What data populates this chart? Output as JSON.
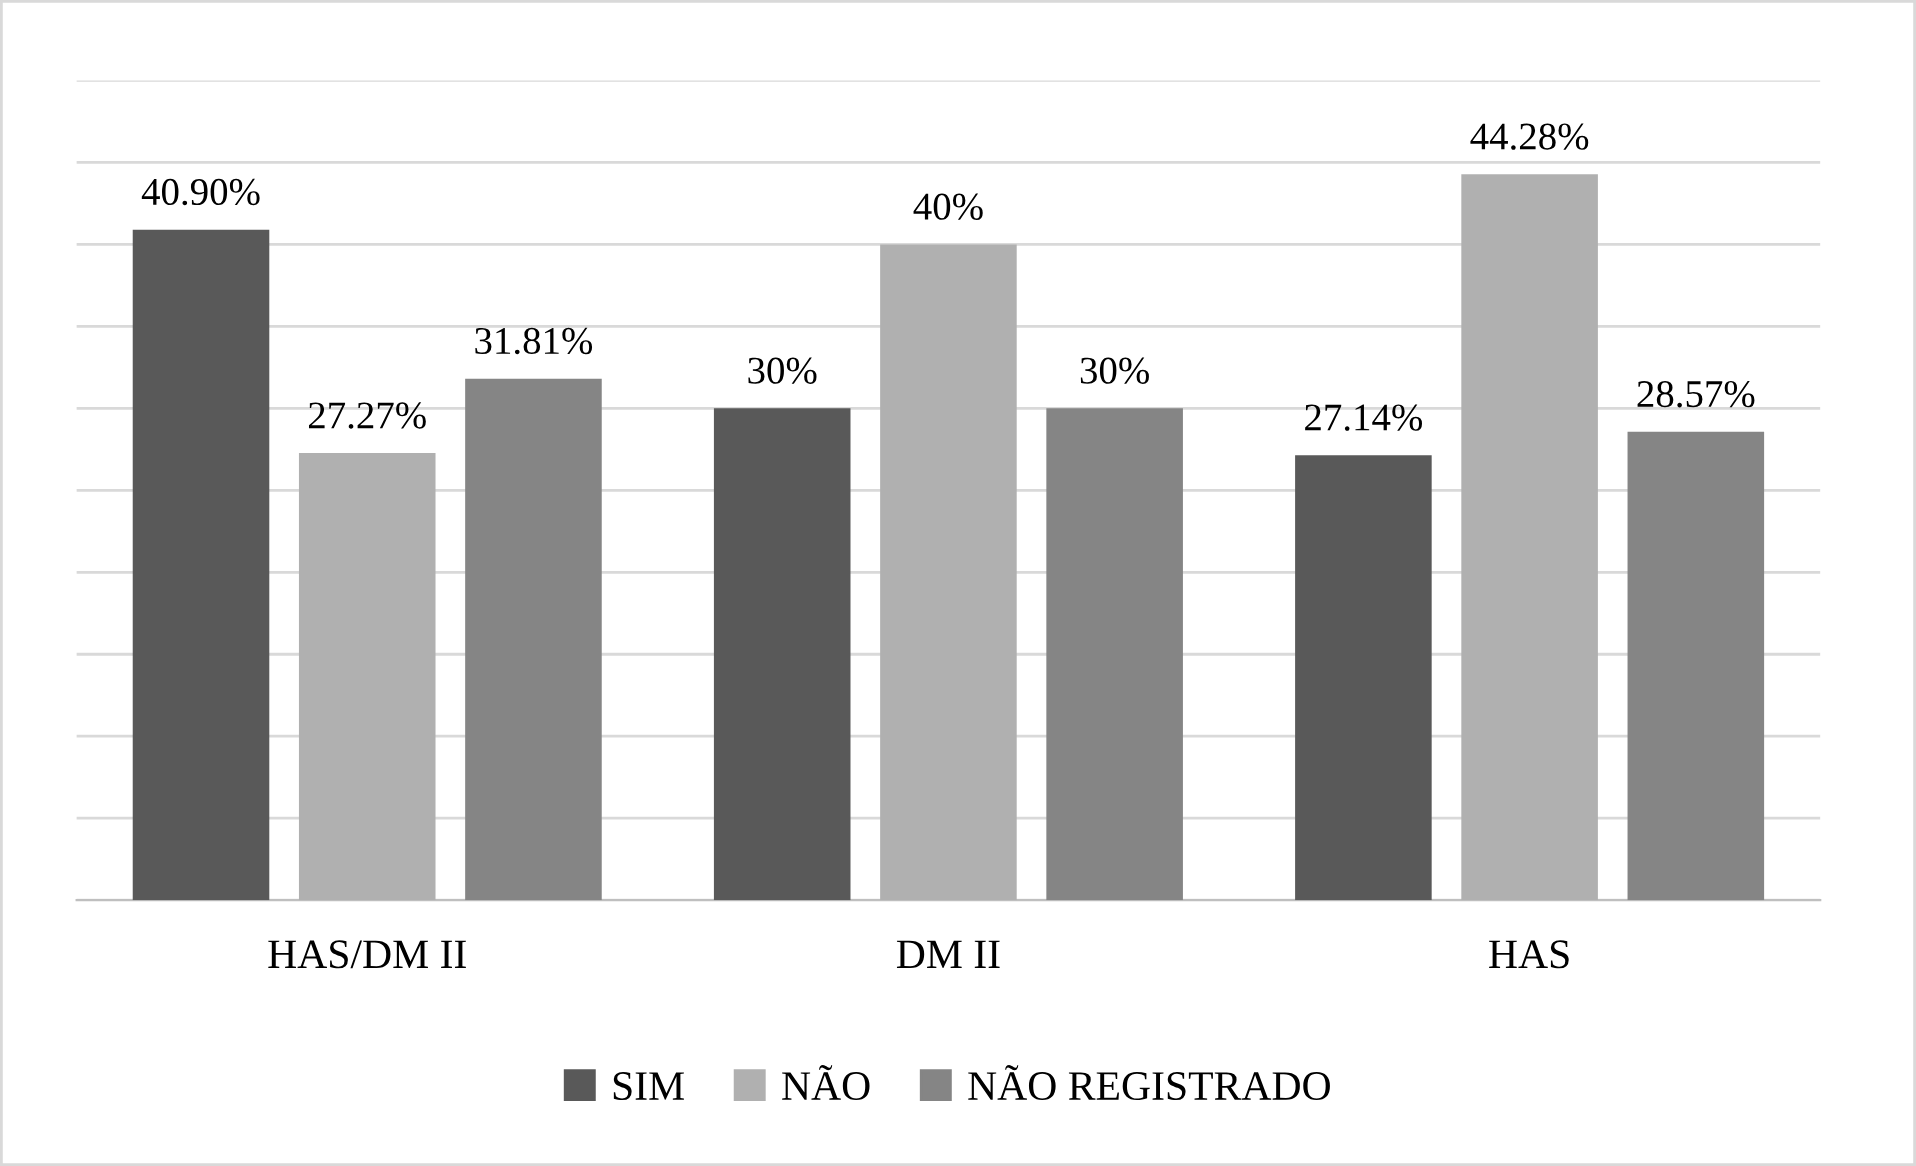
{
  "chart_data": {
    "type": "bar",
    "categories": [
      "HAS/DM II",
      "DM II",
      "HAS"
    ],
    "series": [
      {
        "name": "SIM",
        "color": "#595959",
        "values": [
          40.9,
          30,
          27.14
        ],
        "value_labels": [
          "40.90%",
          "30%",
          "27.14%"
        ]
      },
      {
        "name": "NÃO",
        "color": "#b0b0b0",
        "values": [
          27.27,
          40,
          44.28
        ],
        "value_labels": [
          "27.27%",
          "40%",
          "44.28%"
        ]
      },
      {
        "name": "NÃO REGISTRADO",
        "color": "#858585",
        "values": [
          31.81,
          30,
          28.57
        ],
        "value_labels": [
          "31.81%",
          "30%",
          "28.57%"
        ]
      }
    ],
    "ylim": [
      0,
      50
    ],
    "yticks": [
      {
        "value": 0,
        "label": null
      },
      {
        "value": 5,
        "label": null
      },
      {
        "value": 10,
        "label": null
      },
      {
        "value": 15,
        "label": null
      },
      {
        "value": 20,
        "label": null
      },
      {
        "value": 25,
        "label": null
      },
      {
        "value": 30,
        "label": null
      },
      {
        "value": 35,
        "label": null
      },
      {
        "value": 40,
        "label": null
      },
      {
        "value": 45,
        "label": null
      },
      {
        "value": 50,
        "label": null
      }
    ],
    "tick_labels": "x",
    "grid": "y",
    "legend": "bottom"
  }
}
